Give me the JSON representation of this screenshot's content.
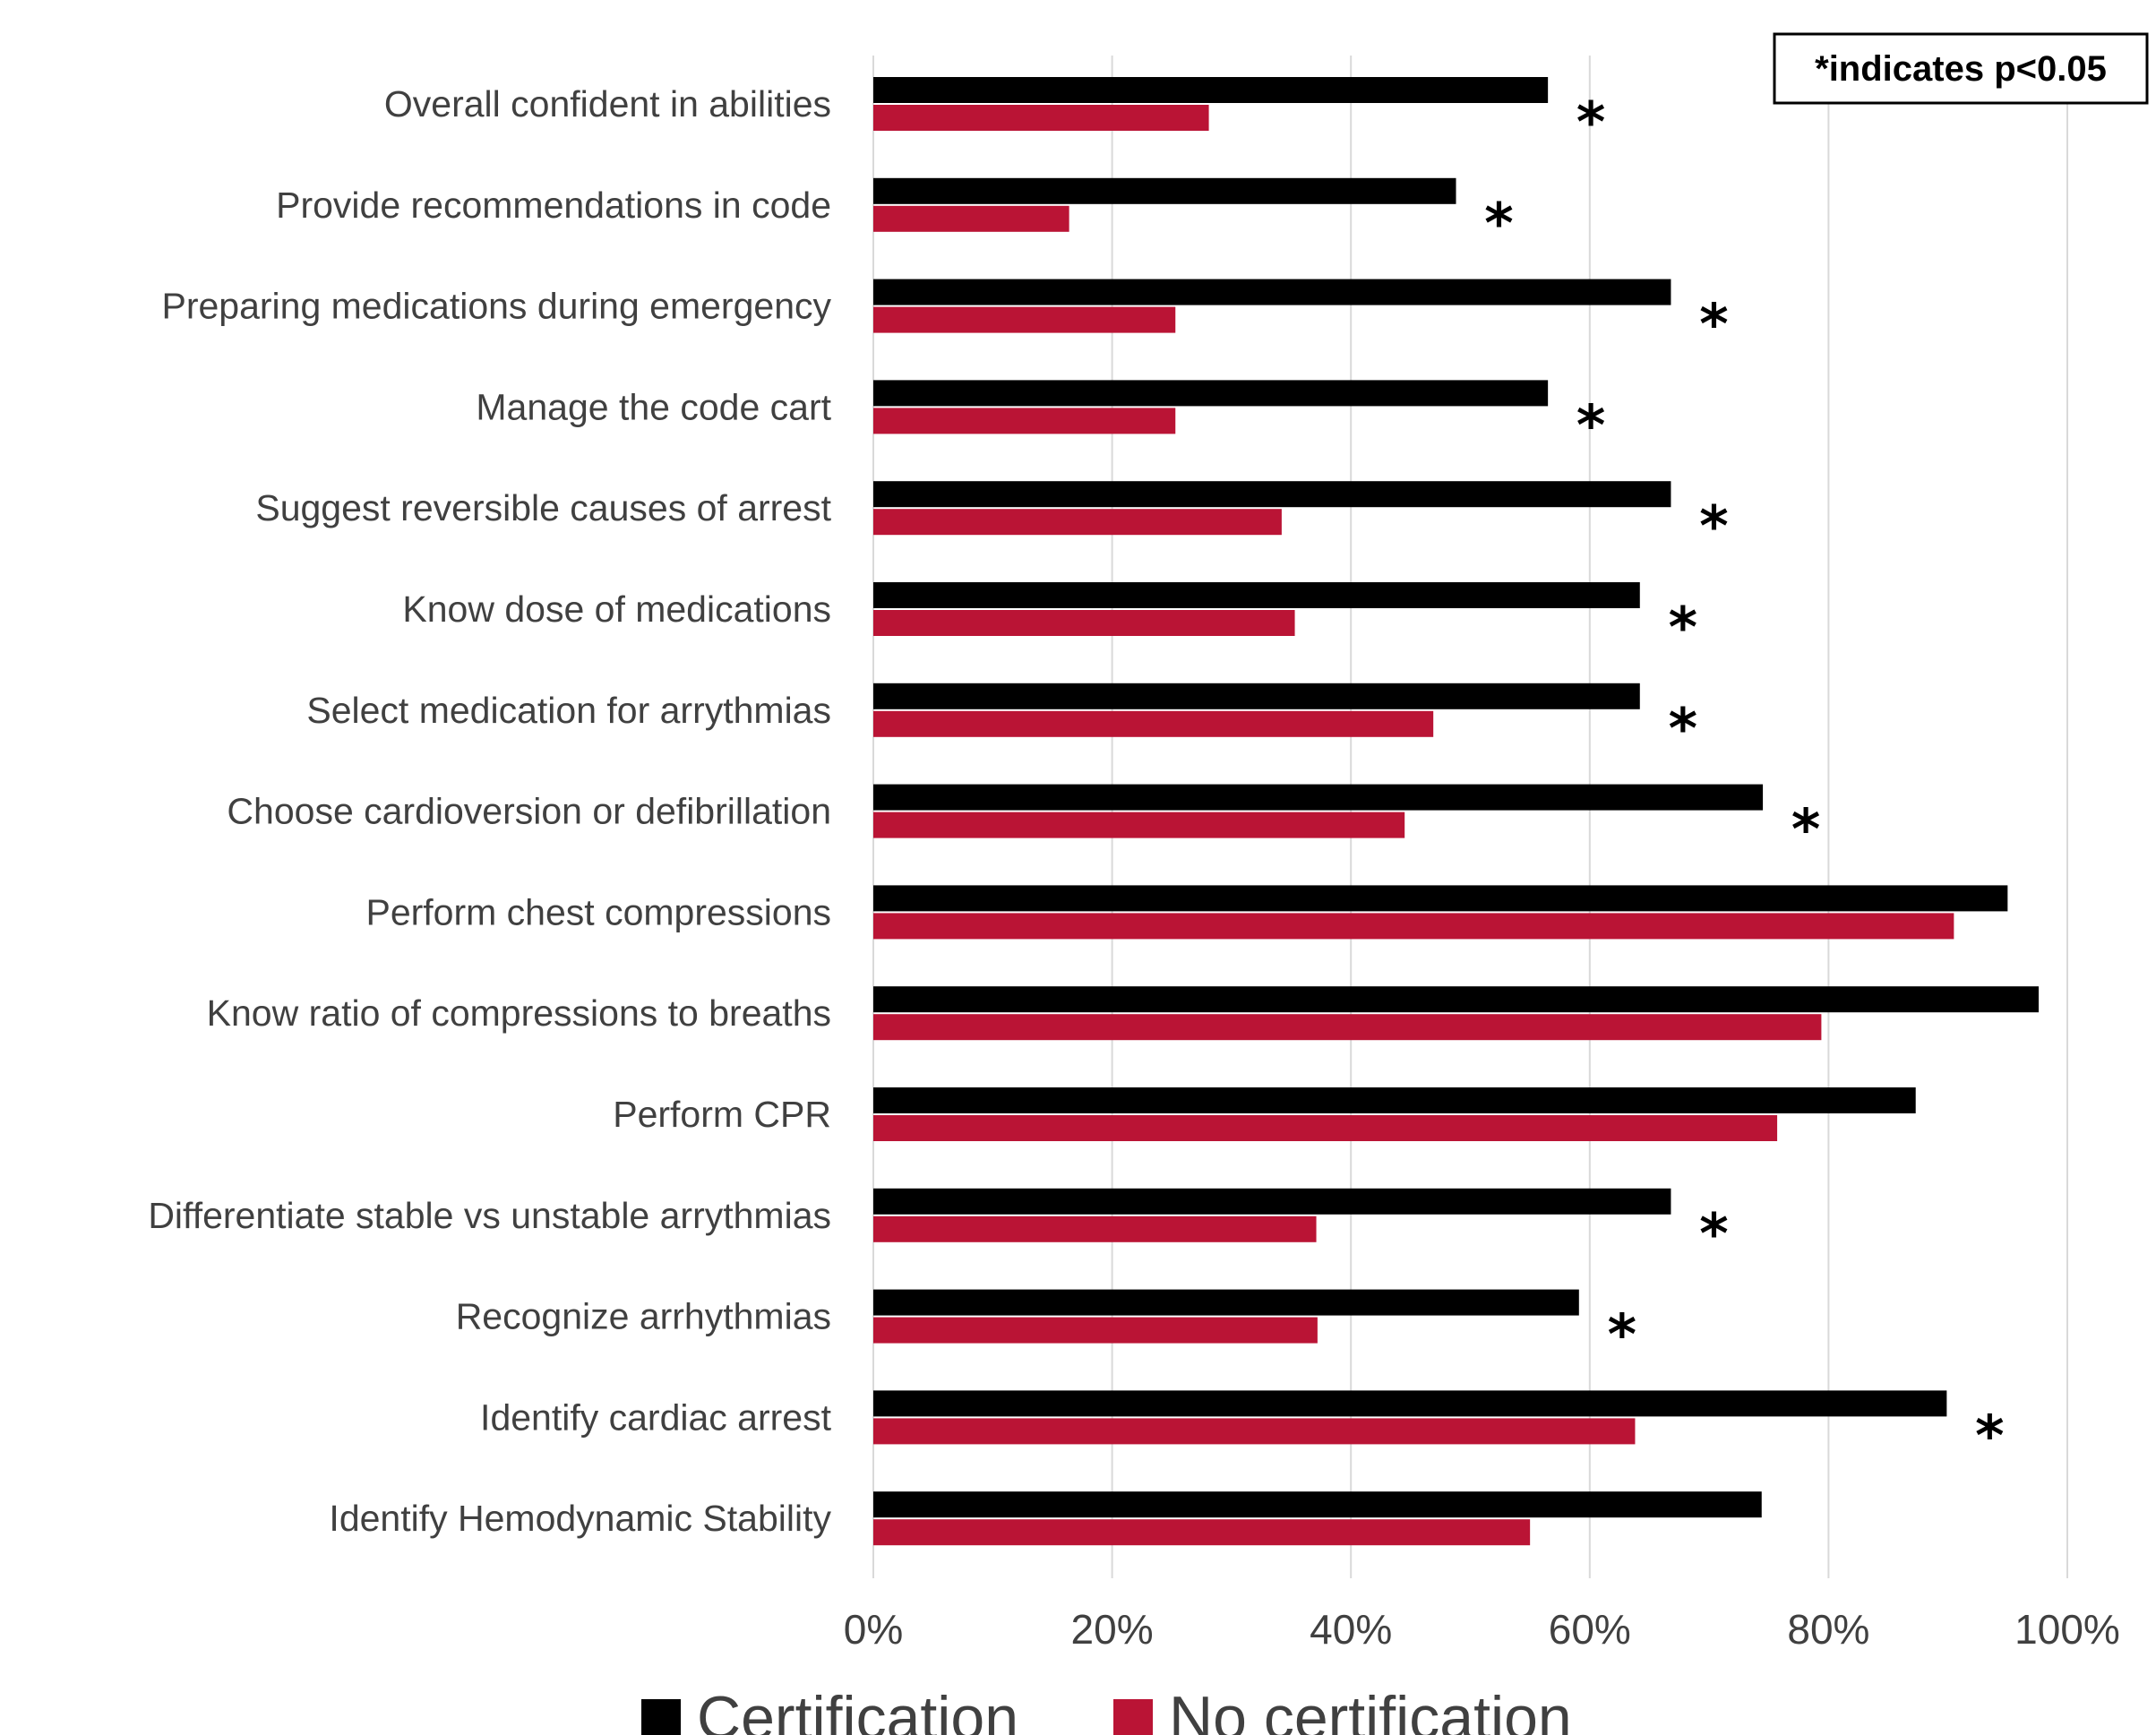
{
  "chart_data": {
    "type": "bar",
    "orientation": "horizontal",
    "categories": [
      "Overall confident in abilities",
      "Provide recommendations in code",
      "Preparing medications during emergency",
      "Manage the code cart",
      "Suggest reversible causes of arrest",
      "Know dose of medications",
      "Select medication for arrythmias",
      "Choose cardioversion or defibrillation",
      "Perform chest compressions",
      "Know ratio of compressions to breaths",
      "Perform CPR",
      "Differentiate stable vs unstable arrythmias",
      "Recognize arrhythmias",
      "Identify cardiac arrest",
      "Identify Hemodynamic Stability"
    ],
    "series": [
      {
        "name": "Certification",
        "color": "#000000",
        "values": [
          56.5,
          48.8,
          66.8,
          56.5,
          66.8,
          64.2,
          64.2,
          74.5,
          95.0,
          97.6,
          87.3,
          66.8,
          59.1,
          89.9,
          74.4
        ]
      },
      {
        "name": "No certification",
        "color": "#BA1435",
        "values": [
          28.1,
          16.4,
          25.3,
          25.3,
          34.2,
          35.3,
          46.9,
          44.5,
          90.5,
          79.4,
          75.7,
          37.1,
          37.2,
          63.8,
          55.0
        ]
      }
    ],
    "significant": [
      true,
      true,
      true,
      true,
      true,
      true,
      true,
      true,
      false,
      false,
      false,
      true,
      true,
      true,
      false
    ],
    "significance_marker": "*",
    "xlim": [
      0,
      100
    ],
    "x_ticks": [
      "0%",
      "20%",
      "40%",
      "60%",
      "80%",
      "100%"
    ],
    "grid": "vertical",
    "legend_position": "bottom",
    "annotation": "*indicates p<0.05",
    "gridline_color": "#d9d9d9"
  }
}
